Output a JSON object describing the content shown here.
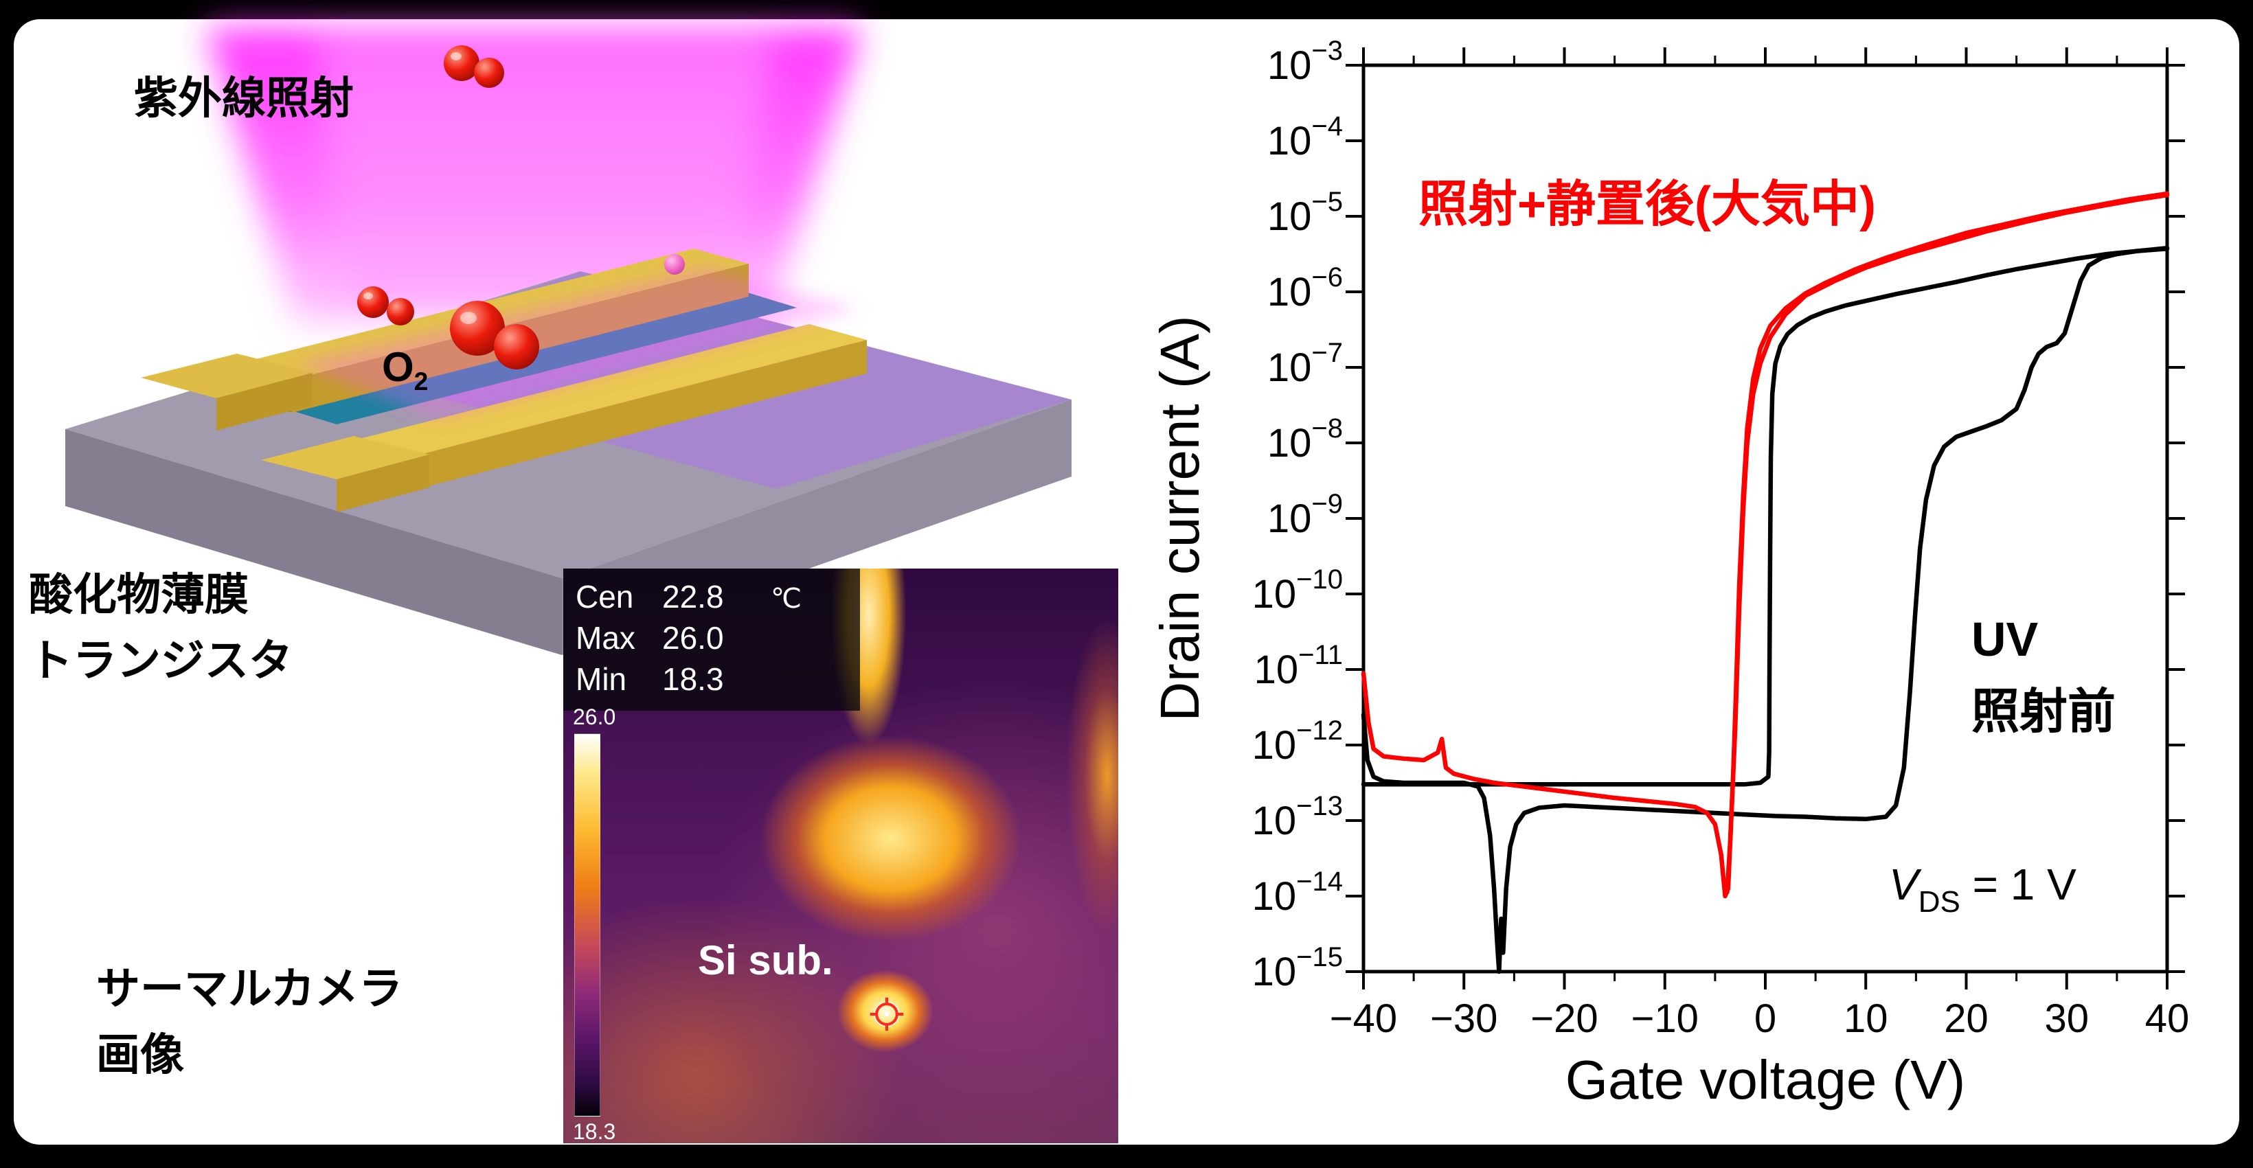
{
  "illustration": {
    "uv_label": "紫外線照射",
    "o2": {
      "base": "O",
      "sub": "2"
    },
    "device_label": [
      "酸化物薄膜",
      "トランジスタ"
    ]
  },
  "thermal": {
    "label": [
      "サーマルカメラ",
      "画像"
    ],
    "readings": [
      {
        "label": "Cen",
        "value": "22.8",
        "unit": "℃"
      },
      {
        "label": "Max",
        "value": "26.0",
        "unit": ""
      },
      {
        "label": "Min",
        "value": "18.3",
        "unit": ""
      }
    ],
    "colorbar": {
      "max": "26.0",
      "min": "18.3"
    },
    "sample_label": "Si sub."
  },
  "chart_data": {
    "type": "line",
    "title": "",
    "xlabel": "Gate voltage (V)",
    "ylabel": "Drain current (A)",
    "xlim": [
      -40,
      40
    ],
    "x_ticks": [
      -40,
      -30,
      -20,
      -10,
      0,
      10,
      20,
      30,
      40
    ],
    "y_scale": "log",
    "ylim_exp": [
      -15,
      -3
    ],
    "y_tick_exponents": [
      -3,
      -4,
      -5,
      -6,
      -7,
      -8,
      -9,
      -10,
      -11,
      -12,
      -13,
      -14,
      -15
    ],
    "grid": false,
    "legend": "none",
    "axis_color": "#000000",
    "annotations": {
      "red_label": "照射+静置後(大気中)",
      "red_color": "#ff0000",
      "black_label_line1": "UV",
      "black_label_line2": "照射前",
      "vds": {
        "var": "V",
        "sub": "DS",
        "eq": " = 1 V"
      }
    },
    "series": [
      {
        "name": "before-uv-forward",
        "color": "#000000",
        "points": [
          [
            -40,
            -11.6
          ],
          [
            -39.6,
            -12.2
          ],
          [
            -39,
            -12.42
          ],
          [
            -38,
            -12.48
          ],
          [
            -36,
            -12.5
          ],
          [
            -33,
            -12.5
          ],
          [
            -30,
            -12.5
          ],
          [
            -28.6,
            -12.55
          ],
          [
            -28,
            -12.7
          ],
          [
            -27.4,
            -13.2
          ],
          [
            -27,
            -13.9
          ],
          [
            -26.7,
            -14.6
          ],
          [
            -26.5,
            -15.0
          ],
          [
            -26.3,
            -14.3
          ],
          [
            -26.1,
            -14.75
          ],
          [
            -25.8,
            -13.9
          ],
          [
            -25.4,
            -13.35
          ],
          [
            -24.8,
            -13.05
          ],
          [
            -24,
            -12.9
          ],
          [
            -22.5,
            -12.83
          ],
          [
            -20,
            -12.8
          ],
          [
            -17,
            -12.82
          ],
          [
            -14,
            -12.84
          ],
          [
            -11,
            -12.86
          ],
          [
            -8,
            -12.88
          ],
          [
            -5,
            -12.9
          ],
          [
            -2,
            -12.92
          ],
          [
            1,
            -12.94
          ],
          [
            4,
            -12.95
          ],
          [
            7,
            -12.97
          ],
          [
            10,
            -12.98
          ],
          [
            12,
            -12.95
          ],
          [
            13,
            -12.8
          ],
          [
            13.8,
            -12.3
          ],
          [
            14.4,
            -11.3
          ],
          [
            14.9,
            -10.3
          ],
          [
            15.4,
            -9.4
          ],
          [
            16,
            -8.75
          ],
          [
            16.8,
            -8.3
          ],
          [
            17.8,
            -8.05
          ],
          [
            19,
            -7.92
          ],
          [
            20.5,
            -7.85
          ],
          [
            22,
            -7.78
          ],
          [
            23.5,
            -7.7
          ],
          [
            25,
            -7.55
          ],
          [
            25.8,
            -7.3
          ],
          [
            26.5,
            -7.0
          ],
          [
            27.2,
            -6.82
          ],
          [
            28,
            -6.73
          ],
          [
            29,
            -6.68
          ],
          [
            29.8,
            -6.55
          ],
          [
            30.6,
            -6.2
          ],
          [
            31.4,
            -5.85
          ],
          [
            32.2,
            -5.65
          ],
          [
            33.5,
            -5.55
          ],
          [
            35,
            -5.5
          ],
          [
            37,
            -5.46
          ],
          [
            40,
            -5.43
          ]
        ]
      },
      {
        "name": "before-uv-reverse",
        "color": "#000000",
        "points": [
          [
            40,
            -5.42
          ],
          [
            37,
            -5.46
          ],
          [
            34,
            -5.5
          ],
          [
            31,
            -5.56
          ],
          [
            28,
            -5.63
          ],
          [
            25,
            -5.7
          ],
          [
            22,
            -5.78
          ],
          [
            19,
            -5.87
          ],
          [
            16,
            -5.95
          ],
          [
            13,
            -6.03
          ],
          [
            10,
            -6.12
          ],
          [
            8,
            -6.18
          ],
          [
            6,
            -6.26
          ],
          [
            4.5,
            -6.34
          ],
          [
            3.2,
            -6.44
          ],
          [
            2.2,
            -6.56
          ],
          [
            1.5,
            -6.72
          ],
          [
            1,
            -6.95
          ],
          [
            0.7,
            -7.35
          ],
          [
            0.55,
            -8.2
          ],
          [
            0.48,
            -9.5
          ],
          [
            0.42,
            -11.0
          ],
          [
            0.38,
            -12.1
          ],
          [
            0.3,
            -12.42
          ],
          [
            -0.5,
            -12.5
          ],
          [
            -2,
            -12.52
          ],
          [
            -5,
            -12.52
          ],
          [
            -9,
            -12.52
          ],
          [
            -13,
            -12.52
          ],
          [
            -18,
            -12.52
          ],
          [
            -23,
            -12.52
          ],
          [
            -28,
            -12.52
          ],
          [
            -33,
            -12.52
          ],
          [
            -37,
            -12.52
          ],
          [
            -40,
            -12.52
          ]
        ]
      },
      {
        "name": "after-uv-ambient-forward",
        "color": "#ff0000",
        "points": [
          [
            -40,
            -11.05
          ],
          [
            -39.5,
            -11.7
          ],
          [
            -39,
            -12.05
          ],
          [
            -38,
            -12.15
          ],
          [
            -36,
            -12.18
          ],
          [
            -34,
            -12.2
          ],
          [
            -32.6,
            -12.1
          ],
          [
            -32.2,
            -11.92
          ],
          [
            -31.8,
            -12.3
          ],
          [
            -31,
            -12.38
          ],
          [
            -29,
            -12.45
          ],
          [
            -27,
            -12.5
          ],
          [
            -24,
            -12.55
          ],
          [
            -21,
            -12.6
          ],
          [
            -18,
            -12.65
          ],
          [
            -15,
            -12.7
          ],
          [
            -12,
            -12.74
          ],
          [
            -9,
            -12.78
          ],
          [
            -7,
            -12.82
          ],
          [
            -5.8,
            -12.9
          ],
          [
            -5,
            -13.05
          ],
          [
            -4.4,
            -13.45
          ],
          [
            -4,
            -14.0
          ],
          [
            -3.7,
            -13.9
          ],
          [
            -3.4,
            -13.0
          ],
          [
            -3,
            -11.8
          ],
          [
            -2.6,
            -10.2
          ],
          [
            -2.2,
            -8.9
          ],
          [
            -1.8,
            -8.0
          ],
          [
            -1.2,
            -7.35
          ],
          [
            -0.5,
            -6.95
          ],
          [
            0.5,
            -6.6
          ],
          [
            2,
            -6.3
          ],
          [
            4,
            -6.05
          ],
          [
            7,
            -5.85
          ],
          [
            10,
            -5.68
          ],
          [
            14,
            -5.5
          ],
          [
            18,
            -5.35
          ],
          [
            22,
            -5.2
          ],
          [
            26,
            -5.07
          ],
          [
            30,
            -4.95
          ],
          [
            34,
            -4.85
          ],
          [
            37,
            -4.78
          ],
          [
            40,
            -4.72
          ]
        ]
      },
      {
        "name": "after-uv-ambient-reverse",
        "color": "#ff0000",
        "points": [
          [
            40,
            -4.7
          ],
          [
            36,
            -4.78
          ],
          [
            32,
            -4.88
          ],
          [
            28,
            -4.98
          ],
          [
            24,
            -5.1
          ],
          [
            20,
            -5.22
          ],
          [
            16,
            -5.38
          ],
          [
            12,
            -5.55
          ],
          [
            9,
            -5.7
          ],
          [
            6,
            -5.88
          ],
          [
            4,
            -6.02
          ],
          [
            2,
            -6.22
          ],
          [
            0.5,
            -6.45
          ],
          [
            -0.5,
            -6.75
          ],
          [
            -1.2,
            -7.15
          ],
          [
            -1.8,
            -7.8
          ],
          [
            -2.2,
            -8.7
          ],
          [
            -2.6,
            -9.9
          ],
          [
            -2.9,
            -11.2
          ],
          [
            -3.2,
            -12.4
          ],
          [
            -3.5,
            -13.3
          ],
          [
            -3.8,
            -13.95
          ]
        ]
      }
    ]
  }
}
